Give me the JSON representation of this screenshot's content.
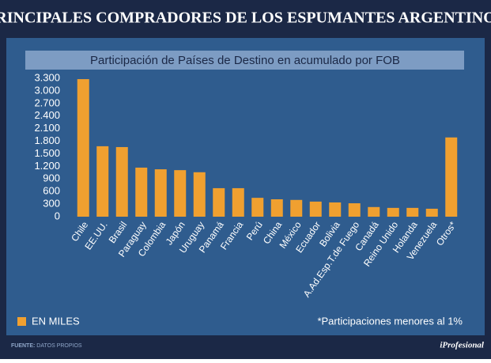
{
  "header": {
    "title": "PRINCIPALES COMPRADORES DE LOS ESPUMANTES ARGENTINOS"
  },
  "chart_data": {
    "type": "bar",
    "subtitle": "Participación de Países de Destino en acumulado por FOB",
    "categories": [
      "Chile",
      "EE.UU.",
      "Brasil",
      "Paraguay",
      "Colombia",
      "Japón",
      "Uruguay",
      "Panamá",
      "Francia",
      "Perú",
      "China",
      "México",
      "Ecuador",
      "Bolivia",
      "A.Ad.Esp.T.de Fuego",
      "Canadá",
      "Reino Unido",
      "Holanda",
      "Venezuela",
      "Otros*"
    ],
    "values": [
      3280,
      1680,
      1660,
      1170,
      1130,
      1110,
      1060,
      680,
      680,
      450,
      415,
      400,
      360,
      340,
      320,
      230,
      210,
      210,
      190,
      1890
    ],
    "color": "#f0a030",
    "ylim": [
      0,
      3300
    ],
    "yticks": [
      0,
      300,
      600,
      900,
      {
        "value": 1200,
        "label": "1.200"
      },
      {
        "value": 1500,
        "label": "1.500"
      },
      {
        "value": 1800,
        "label": "1.800"
      },
      {
        "value": 2100,
        "label": "2.100"
      },
      {
        "value": 2400,
        "label": "2.400"
      },
      {
        "value": 2700,
        "label": "2.700"
      },
      {
        "value": 3000,
        "label": "3.000"
      },
      {
        "value": 3300,
        "label": "3.300"
      }
    ],
    "legend": "EN MILES",
    "note": "*Participaciones menores al 1%"
  },
  "footer": {
    "source_label": "FUENTE:",
    "source": "DATOS PROPIOS",
    "brand": "iProfesional"
  }
}
